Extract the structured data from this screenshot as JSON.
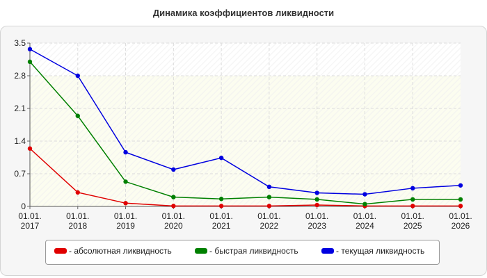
{
  "title": "Динамика коэффициентов ликвидности",
  "colors": {
    "absolute": "#e00000",
    "quick": "#008000",
    "current": "#0000e0"
  },
  "chart_data": {
    "type": "line",
    "title": "Динамика коэффициентов ликвидности",
    "categories": [
      [
        "01.01.",
        "2017"
      ],
      [
        "01.01.",
        "2018"
      ],
      [
        "01.01.",
        "2019"
      ],
      [
        "01.01.",
        "2020"
      ],
      [
        "01.01.",
        "2021"
      ],
      [
        "01.01.",
        "2022"
      ],
      [
        "01.01.",
        "2023"
      ],
      [
        "01.01.",
        "2024"
      ],
      [
        "01.01.",
        "2025"
      ],
      [
        "01.01.",
        "2026"
      ]
    ],
    "ylim": [
      0,
      3.5
    ],
    "yticks": [
      "0",
      "0.7",
      "1.4",
      "2.1",
      "2.8",
      "3.5"
    ],
    "ytick_values": [
      0,
      0.7,
      1.4,
      2.1,
      2.8,
      3.5
    ],
    "grid": true,
    "legend_position": "bottom",
    "series": [
      {
        "name": "- абсолютная ликвидность",
        "key": "absolute",
        "values": [
          1.24,
          0.3,
          0.07,
          0.01,
          0.01,
          0.01,
          0.03,
          0.01,
          0.01,
          0.01
        ]
      },
      {
        "name": "- быстрая ликвидность",
        "key": "quick",
        "values": [
          3.1,
          1.94,
          0.53,
          0.2,
          0.16,
          0.2,
          0.15,
          0.05,
          0.15,
          0.15
        ]
      },
      {
        "name": "- текущая ликвидность",
        "key": "current",
        "values": [
          3.37,
          2.8,
          1.16,
          0.79,
          1.04,
          0.42,
          0.29,
          0.26,
          0.39,
          0.45
        ]
      }
    ]
  }
}
